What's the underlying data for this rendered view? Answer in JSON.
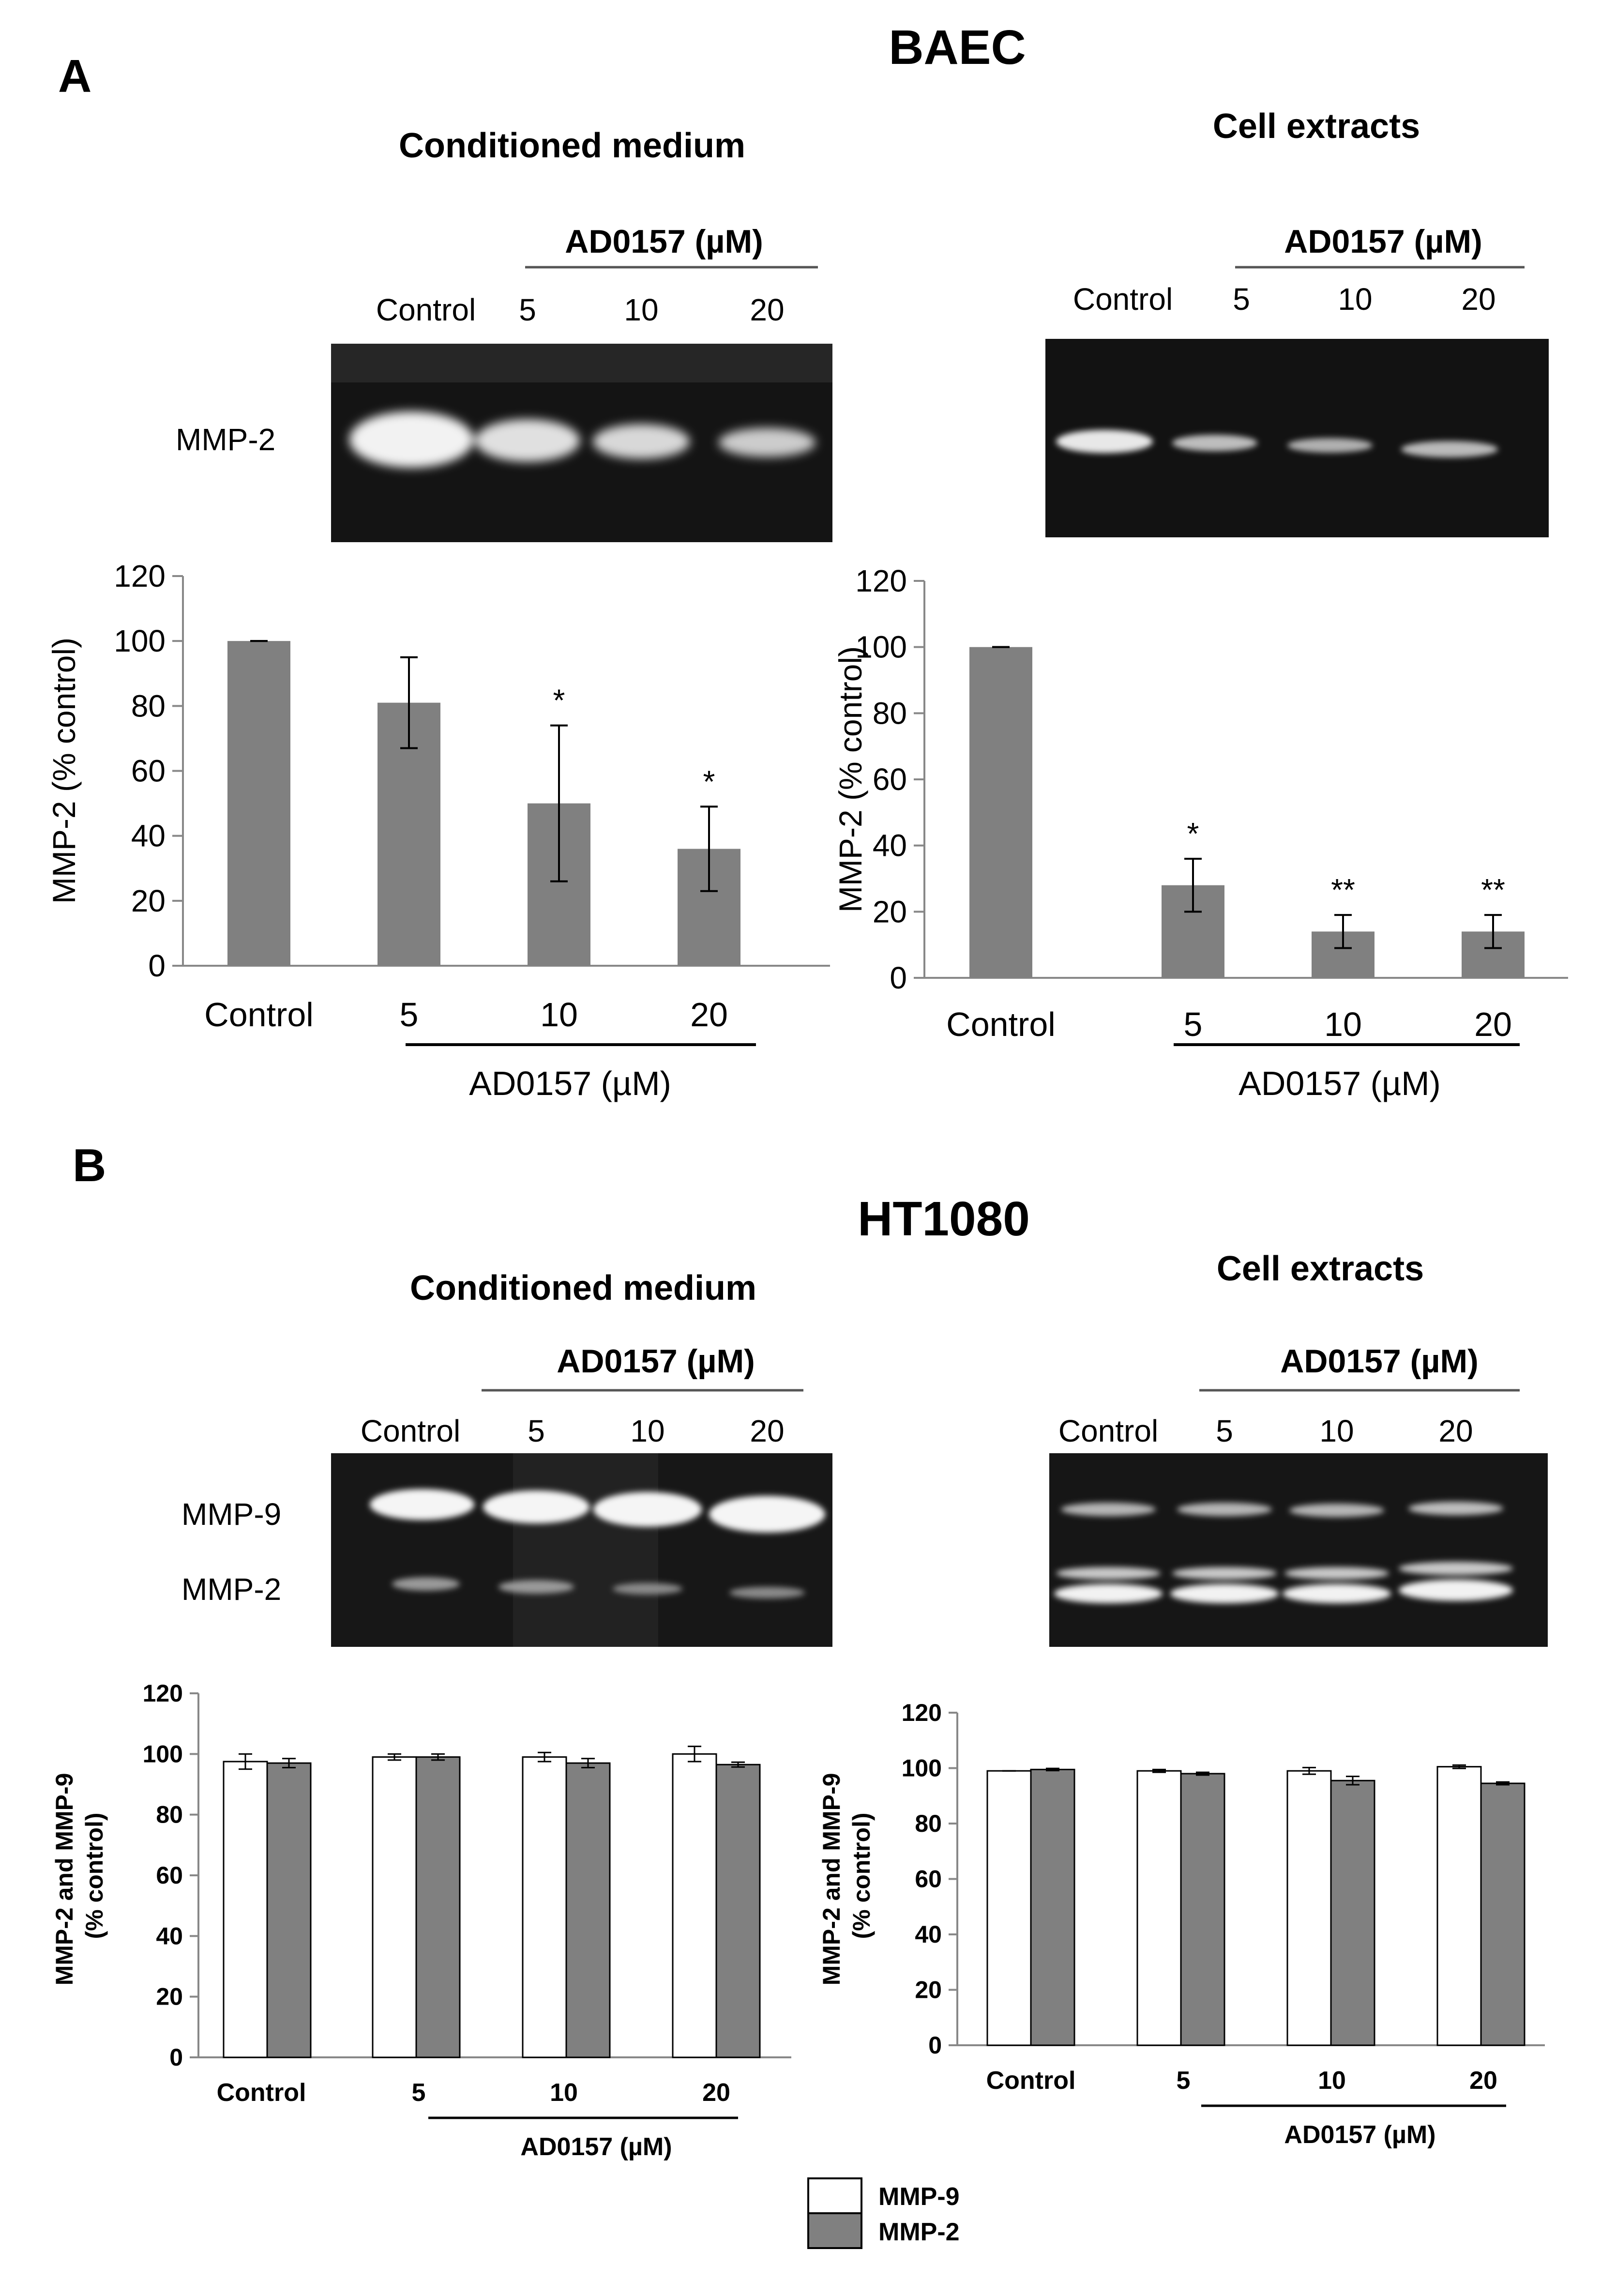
{
  "panel_a": {
    "letter": "A",
    "title": "BAEC",
    "left_subtitle": "Conditioned medium",
    "right_subtitle": "Cell extracts",
    "drug_header": "AD0157 (µM)",
    "lanes": [
      "Control",
      "5",
      "10",
      "20"
    ],
    "band_label": "MMP-2"
  },
  "panel_b": {
    "letter": "B",
    "title": "HT1080",
    "left_subtitle": "Conditioned medium",
    "right_subtitle": "Cell extracts",
    "drug_header": "AD0157 (µM)",
    "lanes": [
      "Control",
      "5",
      "10",
      "20"
    ],
    "band_label_top": "MMP-9",
    "band_label_bottom": "MMP-2"
  },
  "legend": {
    "mmp9": "MMP-9",
    "mmp2": "MMP-2"
  },
  "colors": {
    "bar_gray": "#808080",
    "bar_white": "#ffffff",
    "gel_background": "#111111",
    "band": "#f2f2f2"
  },
  "chart_data": [
    {
      "type": "bar",
      "title": "Conditioned medium",
      "categories": [
        "Control",
        "5",
        "10",
        "20"
      ],
      "group_label": "AD0157 (µM)",
      "ylabel": "MMP-2 (% control)",
      "ylim": [
        0,
        120
      ],
      "yticks": [
        "0",
        "20",
        "40",
        "60",
        "80",
        "100",
        "120"
      ],
      "values": [
        100,
        81,
        50,
        36
      ],
      "errors": [
        0,
        14,
        24,
        13
      ],
      "annotations": [
        "",
        "",
        "*",
        "*"
      ]
    },
    {
      "type": "bar",
      "title": "Cell extracts",
      "categories": [
        "Control",
        "5",
        "10",
        "20"
      ],
      "group_label": "AD0157 (µM)",
      "ylabel": "MMP-2 (% control)",
      "ylim": [
        0,
        120
      ],
      "yticks": [
        "0",
        "20",
        "40",
        "60",
        "80",
        "100",
        "120"
      ],
      "values": [
        100,
        28,
        14,
        14
      ],
      "errors": [
        0,
        8,
        5,
        5
      ],
      "annotations": [
        "",
        "*",
        "**",
        "**"
      ]
    },
    {
      "type": "bar",
      "title": "Conditioned medium",
      "categories": [
        "Control",
        "5",
        "10",
        "20"
      ],
      "group_label": "AD0157 (µM)",
      "ylabel": "MMP-2 and MMP-9 (% control)",
      "ylim": [
        0,
        120
      ],
      "yticks": [
        "0",
        "20",
        "40",
        "60",
        "80",
        "100",
        "120"
      ],
      "series": [
        {
          "name": "MMP-9",
          "values": [
            97.5,
            99,
            99,
            100
          ],
          "errors": [
            2.5,
            1,
            1.5,
            2.5
          ]
        },
        {
          "name": "MMP-2",
          "values": [
            97,
            99,
            97,
            96.5
          ],
          "errors": [
            1.5,
            1,
            1.5,
            0.8
          ]
        }
      ]
    },
    {
      "type": "bar",
      "title": "Cell extracts",
      "categories": [
        "Control",
        "5",
        "10",
        "20"
      ],
      "group_label": "AD0157 (µM)",
      "ylabel": "MMP-2 and MMP-9 (% control)",
      "ylim": [
        0,
        120
      ],
      "yticks": [
        "0",
        "20",
        "40",
        "60",
        "80",
        "100",
        "120"
      ],
      "series": [
        {
          "name": "MMP-9",
          "values": [
            99,
            99,
            99,
            100.5
          ],
          "errors": [
            0,
            0.5,
            1.2,
            0.6
          ]
        },
        {
          "name": "MMP-2",
          "values": [
            99.5,
            98,
            95.5,
            94.5
          ],
          "errors": [
            0.4,
            0.5,
            1.5,
            0.5
          ]
        }
      ]
    }
  ]
}
